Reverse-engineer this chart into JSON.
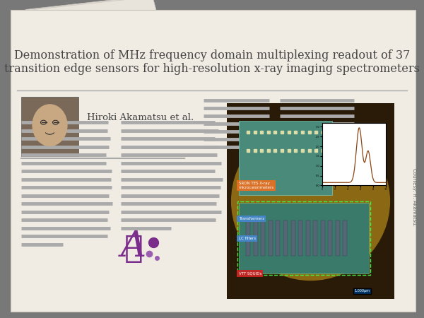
{
  "title_line1": "Demonstration of MHz frequency domain multiplexing readout of 37",
  "title_line2": "transition edge sensors for high-resolution x-ray imaging spectrometers",
  "author": "Hiroki Akamatsu et al.",
  "courtesy_text": "Courtesy: H. Akamatsu.",
  "outer_bg": "#787878",
  "paper_color": "#f0ece4",
  "paper_back_color": "#e8e4dc",
  "text_line_color": "#aaaaaa",
  "title_color": "#444444",
  "author_color": "#444444",
  "purple_color": "#7b2d8b",
  "purple_dot1": "#7b2d8b",
  "purple_dot2": "#9b5db0",
  "title_fontsize": 11.5,
  "author_fontsize": 9.5,
  "rule_color": "#aaaaaa",
  "sci_bg": "#2a1a08",
  "sci_circle": "#8B6914",
  "sci_teal1": "#4a8a7a",
  "sci_teal2": "#3a7a6a",
  "label_orange": "#e87020",
  "label_blue": "#3080c0",
  "label_red": "#c03020",
  "inset_line": "#8B4513",
  "scale_bg": "#003366",
  "courtesy_color": "#666666"
}
